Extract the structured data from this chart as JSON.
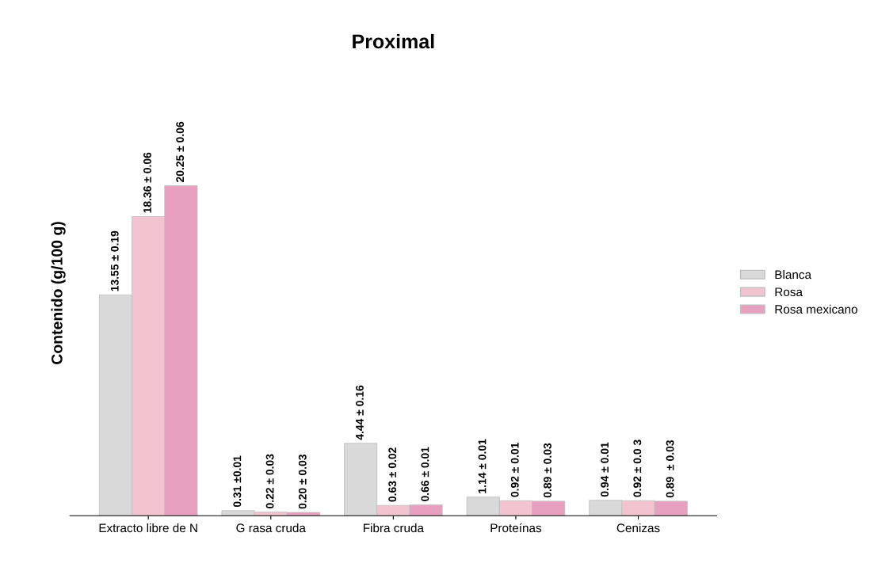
{
  "chart_data": {
    "type": "bar",
    "title": "Proximal",
    "ylabel": "Contenido (g/100 g)",
    "categories": [
      "Extracto libre de N",
      "G rasa cruda",
      "Fibra cruda",
      "Proteínas",
      "Cenizas"
    ],
    "series": [
      {
        "name": "Blanca",
        "color": "#d9d9d9",
        "values": [
          13.55,
          0.31,
          4.44,
          1.14,
          0.94
        ],
        "value_labels": [
          "13.55 ± 0.19",
          "0.31 ±0.01",
          "4.44 ± 0.16",
          "1.14 ± 0.01",
          "0.94 ± 0.01"
        ]
      },
      {
        "name": "Rosa",
        "color": "#f2c4cf",
        "values": [
          18.36,
          0.22,
          0.63,
          0.92,
          0.92
        ],
        "value_labels": [
          "18.36 ± 0.06",
          "0.22 ± 0.03",
          "0.63 ± 0.02",
          "0.92 ± 0.01",
          "0.92 ± 0.0 3"
        ]
      },
      {
        "name": "Rosa mexicano",
        "color": "#e8a0c0",
        "values": [
          20.25,
          0.2,
          0.66,
          0.89,
          0.89
        ],
        "value_labels": [
          "20.25 ± 0.06",
          "0.20 ± 0.03",
          "0.66 ± 0.01",
          "0.89 ± 0.03",
          "0.89  ± 0.03"
        ]
      }
    ],
    "tick_labels": "x",
    "legend": "right",
    "grid": false
  }
}
